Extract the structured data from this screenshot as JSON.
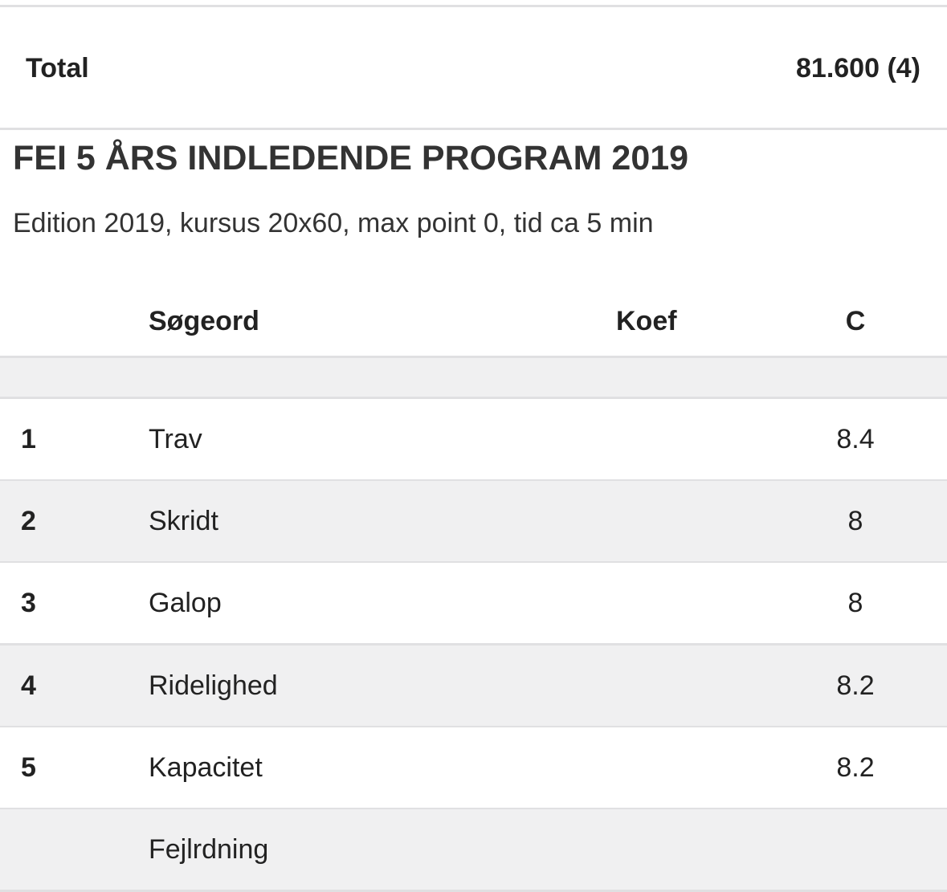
{
  "total": {
    "label": "Total",
    "value": "81.600 (4)"
  },
  "program": {
    "title": "FEI 5 ÅRS INDLEDENDE PROGRAM 2019",
    "subtitle": "Edition 2019, kursus 20x60, max point 0, tid ca 5 min"
  },
  "table": {
    "header": {
      "keyword": "Søgeord",
      "coef": "Koef",
      "c": "C"
    },
    "rows": [
      {
        "number": 1,
        "keyword": "Trav",
        "c": 8.4
      },
      {
        "number": 2,
        "keyword": "Skridt",
        "c": 8
      },
      {
        "number": 3,
        "keyword": "Galop",
        "c": 8
      },
      {
        "number": 4,
        "keyword": "Ridelighed",
        "c": 8.2
      },
      {
        "number": 5,
        "keyword": "Kapacitet",
        "c": 8.2
      },
      {
        "keyword": "Fejlrdning"
      }
    ]
  }
}
